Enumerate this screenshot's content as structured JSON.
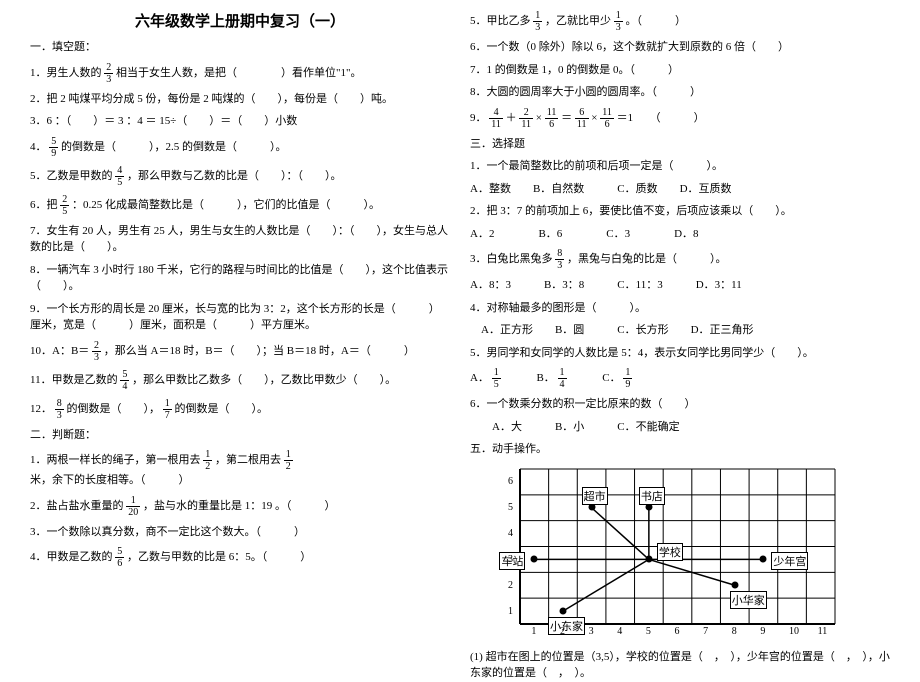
{
  "title": "六年级数学上册期中复习（一）",
  "left": {
    "s1_header": "一．填空题：",
    "q1a": "1．男生人数的",
    "q1_frac_n": "2",
    "q1_frac_d": "3",
    "q1b": "相当于女生人数，是把（　　　　）看作单位\"1\"。",
    "q2": "2．把 2 吨煤平均分成 5 份，每份是 2 吨煤的（　　），每份是（　　）吨。",
    "q3": "3．6 ：（　　）＝ 3 ：4 ＝ 15÷（　　）＝（　　）小数",
    "q4a": "4．",
    "q4_frac_n": "5",
    "q4_frac_d": "9",
    "q4b": "的倒数是（　　　），2.5 的倒数是（　　　）。",
    "q5a": "5．乙数是甲数的",
    "q5_frac_n": "4",
    "q5_frac_d": "5",
    "q5b": "，那么甲数与乙数的比是（　　）：（　　）。",
    "q6a": "6．把",
    "q6_frac_n": "2",
    "q6_frac_d": "5",
    "q6b": "：0.25 化成最简整数比是（　　　），它们的比值是（　　　）。",
    "q7": "7．女生有 20 人，男生有 25 人，男生与女生的人数比是（　　）：（　　），女生与总人数的比是（　　）。",
    "q8": "8．一辆汽车 3 小时行 180 千米，它行的路程与时间比的比值是（　　），这个比值表示（　　）。",
    "q9": "9．一个长方形的周长是 20 厘米，长与宽的比为 3：2，这个长方形的长是（　　　）厘米，宽是（　　　）厘米，面积是（　　　）平方厘米。",
    "q10a": "10．A：B＝",
    "q10_frac_n": "2",
    "q10_frac_d": "3",
    "q10b": "，那么当 A＝18 时，B＝（　　）；当 B＝18 时，A＝（　　　）",
    "q11a": "11．甲数是乙数的",
    "q11_frac_n": "5",
    "q11_frac_d": "4",
    "q11b": "，那么甲数比乙数多（　　），乙数比甲数少（　　）。",
    "q12a": "12．",
    "q12_f1n": "8",
    "q12_f1d": "3",
    "q12b": "的倒数是（　　），",
    "q12_f2n": "1",
    "q12_f2d": "7",
    "q12c": "的倒数是（　　）。",
    "s2_header": "二．判断题：",
    "j1a": "1．两根一样长的绳子，第一根用去",
    "j1_f1n": "1",
    "j1_f1d": "2",
    "j1b": "，第二根用去",
    "j1_f2n": "1",
    "j1_f2d": "2",
    "j1c": "米，余下的长度相等。（　　　）",
    "j2a": "2．盐占盐水重量的",
    "j2_fn": "1",
    "j2_fd": "20",
    "j2b": "，盐与水的重量比是 1：19 。（　　　）",
    "j3": "3．一个数除以真分数，商不一定比这个数大。（　　　）",
    "j4a": "4．甲数是乙数的",
    "j4_fn": "5",
    "j4_fd": "6",
    "j4b": "，乙数与甲数的比是 6：5。（　　　）"
  },
  "right": {
    "j5a": "5．甲比乙多",
    "j5_f1n": "1",
    "j5_f1d": "3",
    "j5b": "，乙就比甲少",
    "j5_f2n": "1",
    "j5_f2d": "3",
    "j5c": "。（　　　）",
    "j6": "6．一个数（0 除外）除以 6，这个数就扩大到原数的 6 倍（　　）",
    "j7": "7．1 的倒数是 1，0 的倒数是 0。（　　　）",
    "j8": "8．大圆的圆周率大于小圆的圆周率。（　　　）",
    "j9a": "9．",
    "j9_f1n": "4",
    "j9_f1d": "11",
    "j9_plus": "＋",
    "j9_f2n": "2",
    "j9_f2d": "11",
    "j9_times": "×",
    "j9_f3n": "11",
    "j9_f3d": "6",
    "j9_eq": "＝",
    "j9_f4n": "6",
    "j9_f4d": "11",
    "j9_times2": "×",
    "j9_f5n": "11",
    "j9_f5d": "6",
    "j9_eq2": "＝1　　（　　　）",
    "s3_header": "三．选择题",
    "c1": "1．一个最简整数比的前项和后项一定是（　　　）。",
    "c1o": "A．整数　　B．自然数　　　C．质数　　D．互质数",
    "c2": "2．把 3：7 的前项加上 6，要使比值不变，后项应该乘以（　　）。",
    "c2o": "A．2　　　　B．6　　　　C．3　　　　D．8",
    "c3a": "3．白兔比黑兔多",
    "c3_fn": "8",
    "c3_fd": "3",
    "c3b": "，黑兔与白兔的比是（　　　）。",
    "c3o": "A．8：3　　　B．3：8　　　C．11：3　　　D．3：11",
    "c4": "4．对称轴最多的图形是（　　　）。",
    "c4o": "　A．正方形　　B．圆　　　C．长方形　　D．正三角形",
    "c5": "5．男同学和女同学的人数比是 5：4，表示女同学比男同学少（　　）。",
    "c5a": "A．",
    "c5_f1n": "1",
    "c5_f1d": "5",
    "c5b": "　　　B．",
    "c5_f2n": "1",
    "c5_f2d": "4",
    "c5c": "　　　C．",
    "c5_f3n": "1",
    "c5_f3d": "9",
    "c6": "6．一个数乘分数的积一定比原来的数（　　）",
    "c6o": "　　A．大　　　B．小　　　C．不能确定",
    "s5_header": "五．动手操作。",
    "chart": {
      "grid_cols": 11,
      "grid_rows": 6,
      "x_ticks": [
        "1",
        "2",
        "3",
        "4",
        "5",
        "6",
        "7",
        "8",
        "9",
        "10",
        "11"
      ],
      "y_ticks": [
        "1",
        "2",
        "3",
        "4",
        "5",
        "6"
      ],
      "grid_color": "#000000",
      "points": {
        "supermarket": {
          "x": 3,
          "y": 5,
          "label": "超市"
        },
        "bookstore": {
          "x": 5,
          "y": 5,
          "label": "书店"
        },
        "station": {
          "x": 1,
          "y": 3,
          "label": "车站"
        },
        "school": {
          "x": 5,
          "y": 3,
          "label": "学校"
        },
        "palace": {
          "x": 9,
          "y": 3,
          "label": "少年宫"
        },
        "dong": {
          "x": 2,
          "y": 1,
          "label": "小东家"
        },
        "hua": {
          "x": 8,
          "y": 2,
          "label": "小华家"
        }
      },
      "edges": [
        [
          "supermarket",
          "school"
        ],
        [
          "bookstore",
          "school"
        ],
        [
          "station",
          "school"
        ],
        [
          "palace",
          "school"
        ],
        [
          "dong",
          "school"
        ],
        [
          "hua",
          "school"
        ]
      ]
    },
    "chart_q": "(1) 超市在图上的位置是（3,5），学校的位置是（　，　），少年宫的位置是（　，　），小东家的位置是（　，　）。"
  }
}
